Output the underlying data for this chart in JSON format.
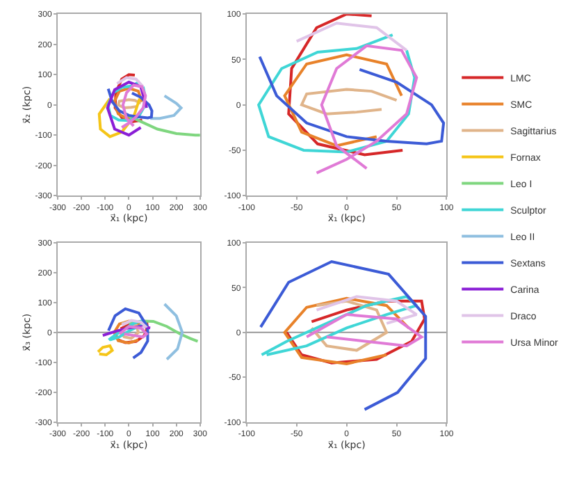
{
  "chart_data": [
    {
      "type": "line",
      "legend": "right",
      "xlabel": "x⃗₁ (kpc)",
      "ylabel": "x⃗₂ (kpc)",
      "xlim": [
        -300,
        300
      ],
      "ylim": [
        -300,
        300
      ],
      "xticks": [
        -300,
        -200,
        -100,
        0,
        100,
        200,
        300
      ],
      "yticks": [
        -300,
        -200,
        -100,
        0,
        100,
        200,
        300
      ],
      "series": [
        {
          "name": "LMC",
          "color": "#d62728",
          "x": [
            56,
            18,
            -29,
            -58,
            -55,
            -30,
            0,
            25
          ],
          "values": [
            -50,
            -55,
            -43,
            -10,
            40,
            85,
            100,
            98
          ]
        },
        {
          "name": "SMC",
          "color": "#e8822a",
          "x": [
            55,
            40,
            0,
            -40,
            -62,
            -45,
            -10,
            30
          ],
          "values": [
            10,
            45,
            55,
            45,
            10,
            -30,
            -45,
            -35
          ]
        },
        {
          "name": "Sagittarius",
          "color": "#e0b48a",
          "x": [
            50,
            25,
            0,
            -40,
            -45,
            -20,
            10,
            35
          ],
          "values": [
            5,
            15,
            17,
            12,
            0,
            -10,
            -8,
            -5
          ]
        },
        {
          "name": "Fornax",
          "color": "#f5c518",
          "x": [
            -80,
            -125,
            -120,
            -80,
            -30,
            20,
            45
          ],
          "values": [
            20,
            -30,
            -80,
            -105,
            -90,
            -40,
            20
          ]
        },
        {
          "name": "Leo I",
          "color": "#7fd67f",
          "x": [
            -20,
            50,
            120,
            200,
            280,
            300
          ],
          "values": [
            -30,
            -55,
            -80,
            -95,
            -100,
            -100
          ]
        },
        {
          "name": "Sculptor",
          "color": "#3fd6d6",
          "x": [
            46,
            10,
            -29,
            -65,
            -88,
            -78,
            -43,
            0,
            40,
            62,
            68,
            60
          ],
          "values": [
            77,
            62,
            58,
            40,
            0,
            -35,
            -50,
            -52,
            -40,
            -10,
            30,
            60
          ]
        },
        {
          "name": "Leo II",
          "color": "#8fbfe0",
          "x": [
            150,
            200,
            220,
            190,
            130,
            90
          ],
          "values": [
            30,
            5,
            -10,
            -35,
            -45,
            -45
          ]
        },
        {
          "name": "Sextans",
          "color": "#3c5bd6",
          "x": [
            -87,
            -70,
            -40,
            0,
            40,
            80,
            95,
            97,
            85,
            50,
            13
          ],
          "values": [
            53,
            10,
            -20,
            -35,
            -40,
            -43,
            -40,
            -20,
            0,
            25,
            39
          ]
        },
        {
          "name": "Carina",
          "color": "#8a1fd6",
          "x": [
            75,
            50,
            0,
            -60,
            -90,
            -60,
            0,
            50
          ],
          "values": [
            -10,
            60,
            75,
            50,
            -10,
            -80,
            -100,
            -75
          ]
        },
        {
          "name": "Draco",
          "color": "#e0c4e8",
          "x": [
            -50,
            -10,
            30,
            60
          ],
          "values": [
            70,
            90,
            85,
            60
          ]
        },
        {
          "name": "Ursa Minor",
          "color": "#e07ad6",
          "x": [
            20,
            -10,
            -25,
            -10,
            20,
            55,
            70,
            60,
            30,
            0,
            -30
          ],
          "values": [
            -70,
            -45,
            0,
            40,
            65,
            60,
            30,
            -10,
            -40,
            -60,
            -75
          ]
        }
      ]
    },
    {
      "type": "line",
      "xlabel": "x⃗₁ (kpc)",
      "xlim": [
        -100,
        100
      ],
      "ylim": [
        -100,
        100
      ],
      "xticks": [
        -100,
        -50,
        0,
        50,
        100
      ],
      "yticks": [
        -100,
        -50,
        0,
        50,
        100
      ],
      "series": [
        {
          "name": "LMC",
          "color": "#d62728",
          "x": [
            56,
            18,
            -29,
            -58,
            -55,
            -30,
            0,
            25
          ],
          "values": [
            -50,
            -55,
            -43,
            -10,
            40,
            85,
            100,
            98
          ]
        },
        {
          "name": "SMC",
          "color": "#e8822a",
          "x": [
            55,
            40,
            0,
            -40,
            -62,
            -45,
            -10,
            30
          ],
          "values": [
            10,
            45,
            55,
            45,
            10,
            -30,
            -45,
            -35
          ]
        },
        {
          "name": "Sagittarius",
          "color": "#e0b48a",
          "x": [
            50,
            25,
            0,
            -40,
            -45,
            -20,
            10,
            35
          ],
          "values": [
            5,
            15,
            17,
            12,
            0,
            -10,
            -8,
            -5
          ]
        },
        {
          "name": "Sculptor",
          "color": "#3fd6d6",
          "x": [
            46,
            10,
            -29,
            -65,
            -88,
            -78,
            -43,
            0,
            40,
            62,
            68,
            60
          ],
          "values": [
            77,
            62,
            58,
            40,
            0,
            -35,
            -50,
            -52,
            -40,
            -10,
            30,
            60
          ]
        },
        {
          "name": "Sextans",
          "color": "#3c5bd6",
          "x": [
            -87,
            -70,
            -40,
            0,
            40,
            80,
            95,
            97,
            85,
            50,
            13
          ],
          "values": [
            53,
            10,
            -20,
            -35,
            -40,
            -43,
            -40,
            -20,
            0,
            25,
            39
          ]
        },
        {
          "name": "Draco",
          "color": "#e0c4e8",
          "x": [
            -50,
            -10,
            30,
            60
          ],
          "values": [
            70,
            90,
            85,
            60
          ]
        },
        {
          "name": "Ursa Minor",
          "color": "#e07ad6",
          "x": [
            20,
            -10,
            -25,
            -10,
            20,
            55,
            70,
            60,
            30,
            0,
            -30
          ],
          "values": [
            -70,
            -45,
            0,
            40,
            65,
            60,
            30,
            -10,
            -40,
            -60,
            -75
          ]
        }
      ]
    },
    {
      "type": "line",
      "xlabel": "x⃗₁ (kpc)",
      "ylabel": "x⃗₃ (kpc)",
      "xlim": [
        -300,
        300
      ],
      "ylim": [
        -300,
        300
      ],
      "xticks": [
        -300,
        -200,
        -100,
        0,
        100,
        200,
        300
      ],
      "yticks": [
        -300,
        -200,
        -100,
        0,
        100,
        200,
        300
      ],
      "ref_lines": [
        {
          "axis": "y",
          "value": 0,
          "color": "#999999"
        }
      ],
      "series": [
        {
          "name": "LMC",
          "color": "#d62728",
          "x": [
            -60,
            -45,
            -15,
            30,
            65,
            78,
            75,
            40,
            0,
            -35
          ],
          "values": [
            0,
            -25,
            -34,
            -30,
            -10,
            15,
            35,
            35,
            25,
            12
          ]
        },
        {
          "name": "SMC",
          "color": "#e8822a",
          "x": [
            62,
            40,
            0,
            -40,
            -62,
            -45,
            0,
            40
          ],
          "values": [
            5,
            30,
            38,
            28,
            0,
            -28,
            -35,
            -25
          ]
        },
        {
          "name": "Sagittarius",
          "color": "#e0b48a",
          "x": [
            -30,
            0,
            30,
            40,
            10,
            -20,
            -35
          ],
          "values": [
            30,
            35,
            25,
            0,
            -20,
            -15,
            5
          ]
        },
        {
          "name": "Fornax",
          "color": "#f5c518",
          "x": [
            -130,
            -110,
            -80,
            -70,
            -95,
            -125
          ],
          "values": [
            -65,
            -50,
            -45,
            -60,
            -75,
            -72
          ]
        },
        {
          "name": "Leo I",
          "color": "#7fd67f",
          "x": [
            0,
            60,
            103,
            160,
            216,
            258,
            290
          ],
          "values": [
            30,
            38,
            37,
            20,
            -5,
            -20,
            -30
          ]
        },
        {
          "name": "Sculptor",
          "color": "#3fd6d6",
          "x": [
            -80,
            -40,
            0,
            40,
            70,
            60,
            20,
            -20,
            -60,
            -85
          ],
          "values": [
            -25,
            -15,
            5,
            20,
            30,
            40,
            30,
            10,
            -10,
            -25
          ]
        },
        {
          "name": "Leo II",
          "color": "#8fbfe0",
          "x": [
            150,
            200,
            225,
            205,
            160
          ],
          "values": [
            95,
            55,
            0,
            -55,
            -90
          ]
        },
        {
          "name": "Sextans",
          "color": "#3c5bd6",
          "x": [
            -86,
            -58,
            -15,
            42,
            79,
            79,
            51,
            18
          ],
          "values": [
            6,
            56,
            79,
            65,
            18,
            -29,
            -67,
            -86
          ]
        },
        {
          "name": "Carina",
          "color": "#8a1fd6",
          "x": [
            -110,
            -50,
            0,
            50,
            90
          ],
          "values": [
            -10,
            5,
            15,
            20,
            15
          ]
        },
        {
          "name": "Draco",
          "color": "#e0c4e8",
          "x": [
            -30,
            10,
            50,
            70,
            40
          ],
          "values": [
            25,
            40,
            35,
            20,
            10
          ]
        },
        {
          "name": "Ursa Minor",
          "color": "#e07ad6",
          "x": [
            -40,
            0,
            50,
            75,
            60,
            20,
            -20
          ],
          "values": [
            -5,
            20,
            15,
            -5,
            -15,
            -10,
            -5
          ]
        }
      ]
    },
    {
      "type": "line",
      "xlabel": "x⃗₁ (kpc)",
      "xlim": [
        -100,
        100
      ],
      "ylim": [
        -100,
        100
      ],
      "xticks": [
        -100,
        -50,
        0,
        50,
        100
      ],
      "yticks": [
        -100,
        -50,
        0,
        50,
        100
      ],
      "ref_lines": [
        {
          "axis": "y",
          "value": 0,
          "color": "#999999"
        }
      ],
      "series": [
        {
          "name": "LMC",
          "color": "#d62728",
          "x": [
            -60,
            -45,
            -15,
            30,
            65,
            78,
            75,
            40,
            0,
            -35
          ],
          "values": [
            0,
            -25,
            -34,
            -30,
            -10,
            15,
            35,
            35,
            25,
            12
          ]
        },
        {
          "name": "SMC",
          "color": "#e8822a",
          "x": [
            62,
            40,
            0,
            -40,
            -62,
            -45,
            0,
            40
          ],
          "values": [
            5,
            30,
            38,
            28,
            0,
            -28,
            -35,
            -25
          ]
        },
        {
          "name": "Sagittarius",
          "color": "#e0b48a",
          "x": [
            -30,
            0,
            30,
            40,
            10,
            -20,
            -35
          ],
          "values": [
            30,
            35,
            25,
            0,
            -20,
            -15,
            5
          ]
        },
        {
          "name": "Sculptor",
          "color": "#3fd6d6",
          "x": [
            -80,
            -40,
            0,
            40,
            70,
            60,
            20,
            -20,
            -60,
            -85
          ],
          "values": [
            -25,
            -15,
            5,
            20,
            30,
            40,
            30,
            10,
            -10,
            -25
          ]
        },
        {
          "name": "Sextans",
          "color": "#3c5bd6",
          "x": [
            -86,
            -58,
            -15,
            42,
            79,
            79,
            51,
            18
          ],
          "values": [
            6,
            56,
            79,
            65,
            18,
            -29,
            -67,
            -86
          ]
        },
        {
          "name": "Draco",
          "color": "#e0c4e8",
          "x": [
            -30,
            10,
            50,
            70,
            40
          ],
          "values": [
            25,
            40,
            35,
            20,
            10
          ]
        },
        {
          "name": "Ursa Minor",
          "color": "#e07ad6",
          "x": [
            -40,
            0,
            50,
            75,
            60,
            20,
            -20
          ],
          "values": [
            -5,
            20,
            15,
            -5,
            -15,
            -10,
            -5
          ]
        }
      ]
    }
  ]
}
